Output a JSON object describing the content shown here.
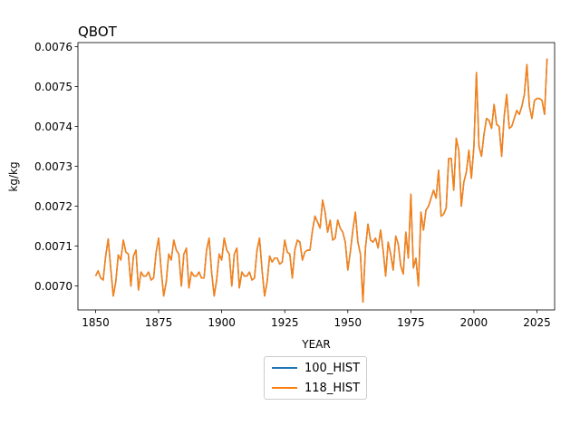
{
  "chart_data": {
    "type": "line",
    "title": "QBOT",
    "xlabel": "YEAR",
    "ylabel": "kg/kg",
    "xlim": [
      1843,
      2032
    ],
    "ylim": [
      0.00694,
      0.00761
    ],
    "xticks": [
      1850,
      1875,
      1900,
      1925,
      1950,
      1975,
      2000,
      2025
    ],
    "yticks": [
      0.007,
      0.0071,
      0.0072,
      0.0073,
      0.0074,
      0.0075,
      0.0076
    ],
    "ytick_labels": [
      "0.0070",
      "0.0071",
      "0.0072",
      "0.0073",
      "0.0074",
      "0.0075",
      "0.0076"
    ],
    "legend_position": "below",
    "x_start": 1850,
    "x_step": 1,
    "series": [
      {
        "name": "100_HIST",
        "color": "#1f77b4",
        "values_same_as": "118_HIST"
      },
      {
        "name": "118_HIST",
        "color": "#ff7f0e",
        "values": [
          0.007025,
          0.007038,
          0.00702,
          0.007015,
          0.007075,
          0.007118,
          0.007045,
          0.006975,
          0.00701,
          0.007078,
          0.007065,
          0.007115,
          0.007085,
          0.00708,
          0.007,
          0.007075,
          0.00709,
          0.00699,
          0.007035,
          0.007025,
          0.007025,
          0.007035,
          0.007015,
          0.00702,
          0.007085,
          0.00712,
          0.00704,
          0.006975,
          0.00701,
          0.00708,
          0.007065,
          0.007115,
          0.00709,
          0.00708,
          0.007,
          0.00708,
          0.007095,
          0.006995,
          0.007035,
          0.007025,
          0.007025,
          0.007035,
          0.00702,
          0.00702,
          0.00709,
          0.00712,
          0.007035,
          0.006975,
          0.007015,
          0.00708,
          0.007065,
          0.00712,
          0.00709,
          0.00708,
          0.007,
          0.00708,
          0.007095,
          0.006995,
          0.007035,
          0.007025,
          0.007025,
          0.007035,
          0.007015,
          0.00702,
          0.00709,
          0.00712,
          0.00704,
          0.006975,
          0.00701,
          0.007075,
          0.00706,
          0.00707,
          0.00707,
          0.007055,
          0.00706,
          0.007115,
          0.007085,
          0.00708,
          0.00702,
          0.00709,
          0.007115,
          0.00711,
          0.007065,
          0.007085,
          0.00709,
          0.00709,
          0.00714,
          0.007175,
          0.00716,
          0.007145,
          0.007215,
          0.007185,
          0.007135,
          0.007165,
          0.007115,
          0.00712,
          0.007165,
          0.007145,
          0.007135,
          0.00711,
          0.00704,
          0.007085,
          0.00714,
          0.007185,
          0.00711,
          0.00708,
          0.00696,
          0.007095,
          0.007155,
          0.007115,
          0.00711,
          0.00712,
          0.007095,
          0.00714,
          0.00709,
          0.007025,
          0.00711,
          0.00708,
          0.00704,
          0.007125,
          0.007105,
          0.00705,
          0.00703,
          0.007135,
          0.00707,
          0.00723,
          0.007045,
          0.00707,
          0.007,
          0.007185,
          0.00714,
          0.00719,
          0.0072,
          0.00722,
          0.00724,
          0.00722,
          0.00729,
          0.007175,
          0.00718,
          0.007195,
          0.00732,
          0.00732,
          0.00724,
          0.00737,
          0.00734,
          0.0072,
          0.00726,
          0.007285,
          0.00734,
          0.00727,
          0.00735,
          0.007535,
          0.00735,
          0.007325,
          0.00738,
          0.00742,
          0.007415,
          0.007395,
          0.007455,
          0.007405,
          0.0074,
          0.007325,
          0.007425,
          0.00748,
          0.007395,
          0.0074,
          0.00742,
          0.00744,
          0.00743,
          0.00745,
          0.00748,
          0.007555,
          0.00745,
          0.00742,
          0.007465,
          0.00747,
          0.00747,
          0.007465,
          0.00743,
          0.00757
        ]
      }
    ]
  }
}
